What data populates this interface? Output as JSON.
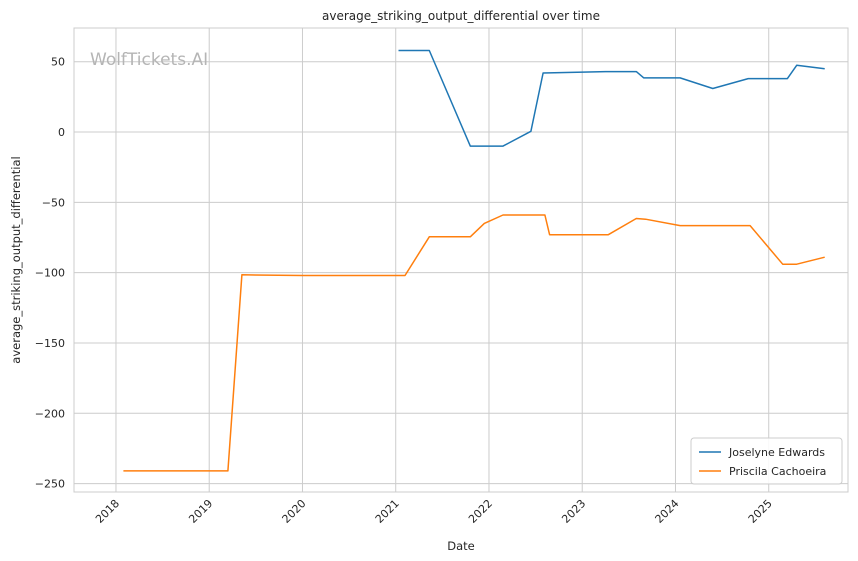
{
  "chart_data": {
    "type": "line",
    "title": "average_striking_output_differential over time",
    "xlabel": "Date",
    "ylabel": "average_striking_output_differential",
    "watermark": "WolfTickets.AI",
    "xlim": [
      2017.55,
      2025.85
    ],
    "ylim": [
      -256,
      74
    ],
    "x_ticks": [
      2018,
      2019,
      2020,
      2021,
      2022,
      2023,
      2024,
      2025
    ],
    "x_tick_labels": [
      "2018",
      "2019",
      "2020",
      "2021",
      "2022",
      "2023",
      "2024",
      "2025"
    ],
    "y_ticks": [
      50,
      0,
      -50,
      -100,
      -150,
      -200,
      -250
    ],
    "y_tick_labels": [
      "50",
      "0",
      "−50",
      "−100",
      "−150",
      "−200",
      "−250"
    ],
    "grid": true,
    "legend_position": "bottom-right",
    "series": [
      {
        "name": "Joselyne Edwards",
        "color": "#1f77b4",
        "points": [
          [
            2021.03,
            58
          ],
          [
            2021.36,
            58
          ],
          [
            2021.8,
            -10
          ],
          [
            2022.15,
            -10
          ],
          [
            2022.45,
            0.5
          ],
          [
            2022.58,
            42
          ],
          [
            2023.25,
            43
          ],
          [
            2023.58,
            43
          ],
          [
            2023.66,
            38.5
          ],
          [
            2024.05,
            38.5
          ],
          [
            2024.4,
            31
          ],
          [
            2024.78,
            38
          ],
          [
            2025.2,
            38
          ],
          [
            2025.3,
            47.5
          ],
          [
            2025.6,
            45
          ]
        ]
      },
      {
        "name": "Priscila Cachoeira",
        "color": "#ff7f0e",
        "points": [
          [
            2018.08,
            -241
          ],
          [
            2019.2,
            -241
          ],
          [
            2019.35,
            -101.5
          ],
          [
            2020.0,
            -102
          ],
          [
            2021.1,
            -102
          ],
          [
            2021.36,
            -74.5
          ],
          [
            2021.8,
            -74.5
          ],
          [
            2021.95,
            -65
          ],
          [
            2022.15,
            -59
          ],
          [
            2022.6,
            -59
          ],
          [
            2022.65,
            -73
          ],
          [
            2023.28,
            -73
          ],
          [
            2023.58,
            -61.5
          ],
          [
            2023.68,
            -62
          ],
          [
            2024.05,
            -66.5
          ],
          [
            2024.8,
            -66.5
          ],
          [
            2025.15,
            -94
          ],
          [
            2025.3,
            -94
          ],
          [
            2025.6,
            -89
          ]
        ]
      }
    ]
  }
}
